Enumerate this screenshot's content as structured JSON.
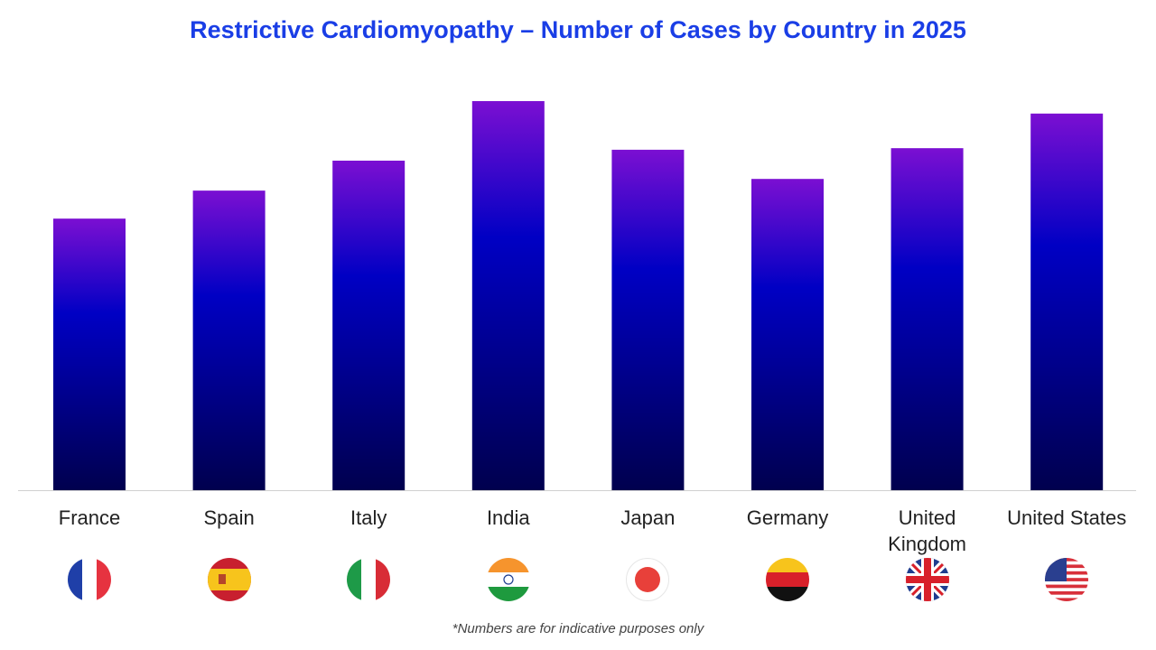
{
  "chart_data": {
    "type": "bar",
    "title": "Restrictive Cardiomyopathy – Number of Cases by Country in 2025",
    "categories": [
      "France",
      "Spain",
      "Italy",
      "India",
      "Japan",
      "Germany",
      "United Kingdom",
      "United States"
    ],
    "values": [
      69.8,
      77.0,
      84.7,
      100,
      87.5,
      80.0,
      87.9,
      96.8
    ],
    "value_note": "relative bar heights (no axis printed; India = 100)",
    "ylim": [
      0,
      100
    ],
    "grid": false,
    "bar_gradient": [
      "#7b0fd2",
      "#0000c4",
      "#00004e"
    ],
    "flags": [
      "france-flag",
      "spain-flag",
      "italy-flag",
      "india-flag",
      "japan-flag",
      "germany-flag",
      "uk-flag",
      "usa-flag"
    ]
  },
  "footnote": "*Numbers are for indicative purposes only"
}
